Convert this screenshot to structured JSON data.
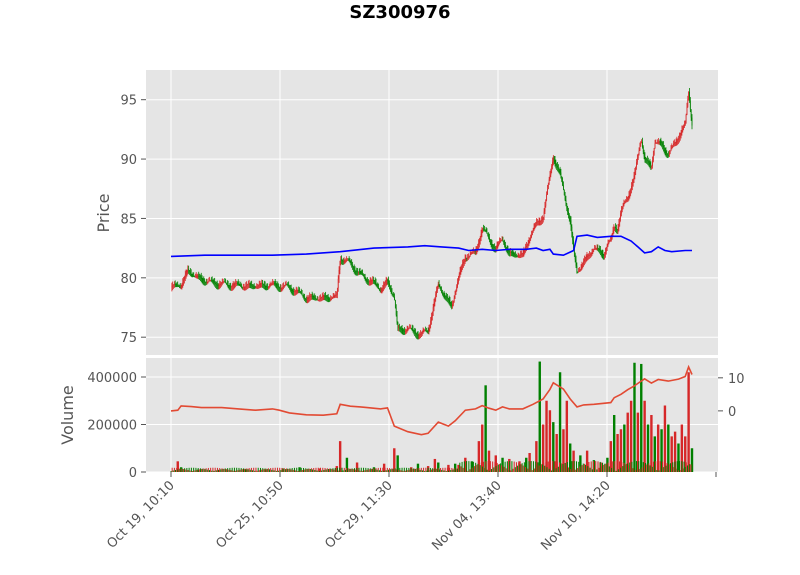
{
  "chart_data": {
    "type": "candlestick",
    "title": "SZ300976",
    "colors": {
      "panel_bg": "#e5e5e5",
      "grid": "#ffffff",
      "up": "#d62728",
      "down": "#008000",
      "ma_line": "#0000ff",
      "volume_overlay": "#e24a33"
    },
    "x_tick_labels": [
      "Oct 19, 10:10",
      "Oct 25, 10:50",
      "Oct 29, 11:30",
      "Nov 04, 13:40",
      "Nov 10, 14:20"
    ],
    "price_panel": {
      "ylabel": "Price",
      "ylim": [
        73.5,
        97.5
      ],
      "yticks": [
        75,
        80,
        85,
        90,
        95
      ],
      "close_path": [
        [
          0,
          79.2
        ],
        [
          3,
          79.4
        ],
        [
          5,
          80.6
        ],
        [
          8,
          80.0
        ],
        [
          12,
          79.6
        ],
        [
          18,
          79.4
        ],
        [
          24,
          79.3
        ],
        [
          30,
          79.4
        ],
        [
          35,
          79.2
        ],
        [
          38,
          78.7
        ],
        [
          40,
          78.3
        ],
        [
          45,
          78.3
        ],
        [
          49,
          78.4
        ],
        [
          50,
          81.7
        ],
        [
          53,
          81.2
        ],
        [
          57,
          80.0
        ],
        [
          60,
          79.6
        ],
        [
          62,
          79.0
        ],
        [
          64,
          79.7
        ],
        [
          66,
          78.4
        ],
        [
          67,
          75.6
        ],
        [
          70,
          75.7
        ],
        [
          74,
          75.2
        ],
        [
          76,
          75.6
        ],
        [
          79,
          79.4
        ],
        [
          82,
          78.0
        ],
        [
          83,
          77.6
        ],
        [
          85,
          80.0
        ],
        [
          87,
          81.8
        ],
        [
          90,
          82.1
        ],
        [
          92,
          84.2
        ],
        [
          94,
          83.3
        ],
        [
          96,
          82.4
        ],
        [
          98,
          83.3
        ],
        [
          100,
          82.0
        ],
        [
          104,
          81.9
        ],
        [
          106,
          83.4
        ],
        [
          108,
          84.5
        ],
        [
          110,
          85.2
        ],
        [
          112,
          88.5
        ],
        [
          113,
          90.3
        ],
        [
          115,
          88.7
        ],
        [
          117,
          86.0
        ],
        [
          118,
          84.8
        ],
        [
          119,
          82.3
        ],
        [
          120,
          80.5
        ],
        [
          122,
          81.3
        ],
        [
          125,
          82.5
        ],
        [
          128,
          82.0
        ],
        [
          129,
          82.8
        ],
        [
          130,
          83.0
        ],
        [
          131,
          84.4
        ],
        [
          132,
          84.2
        ],
        [
          133,
          85.5
        ],
        [
          135,
          86.8
        ],
        [
          137,
          88.6
        ],
        [
          138,
          90.2
        ],
        [
          139,
          91.8
        ],
        [
          140,
          90.0
        ],
        [
          142,
          89.3
        ],
        [
          143,
          91.5
        ],
        [
          145,
          91.2
        ],
        [
          147,
          90.4
        ],
        [
          149,
          91.3
        ],
        [
          151,
          92.5
        ],
        [
          152,
          92.8
        ],
        [
          153,
          95.7
        ],
        [
          154,
          93.0
        ]
      ],
      "ma_path": [
        [
          0,
          81.8
        ],
        [
          10,
          81.9
        ],
        [
          20,
          81.9
        ],
        [
          30,
          81.9
        ],
        [
          40,
          82.0
        ],
        [
          50,
          82.2
        ],
        [
          60,
          82.5
        ],
        [
          70,
          82.6
        ],
        [
          75,
          82.7
        ],
        [
          80,
          82.6
        ],
        [
          85,
          82.5
        ],
        [
          88,
          82.3
        ],
        [
          92,
          82.4
        ],
        [
          96,
          82.3
        ],
        [
          100,
          82.4
        ],
        [
          105,
          82.4
        ],
        [
          108,
          82.5
        ],
        [
          110,
          82.3
        ],
        [
          112,
          82.4
        ],
        [
          113,
          82.0
        ],
        [
          116,
          81.9
        ],
        [
          119,
          82.3
        ],
        [
          120,
          83.5
        ],
        [
          123,
          83.6
        ],
        [
          126,
          83.4
        ],
        [
          130,
          83.5
        ],
        [
          133,
          83.5
        ],
        [
          136,
          83.1
        ],
        [
          138,
          82.6
        ],
        [
          140,
          82.1
        ],
        [
          142,
          82.2
        ],
        [
          144,
          82.6
        ],
        [
          146,
          82.3
        ],
        [
          148,
          82.2
        ],
        [
          152,
          82.3
        ],
        [
          154,
          82.3
        ]
      ]
    },
    "volume_panel": {
      "ylabel": "Volume",
      "ylim": [
        0,
        480000
      ],
      "yticks": [
        0,
        200000,
        400000
      ],
      "ytick_labels": [
        "0",
        "200000",
        "400000"
      ],
      "right_ylim": [
        -18.5,
        16
      ],
      "right_yticks": [
        0,
        10
      ],
      "right_ytick_labels": [
        "0",
        "10"
      ],
      "overlay_path": [
        [
          0,
          0
        ],
        [
          2,
          0.2
        ],
        [
          3,
          1.5
        ],
        [
          6,
          1.3
        ],
        [
          9,
          1.0
        ],
        [
          15,
          1.0
        ],
        [
          20,
          0.6
        ],
        [
          25,
          0.2
        ],
        [
          30,
          0.6
        ],
        [
          32,
          0.2
        ],
        [
          35,
          -0.6
        ],
        [
          40,
          -1.2
        ],
        [
          45,
          -1.3
        ],
        [
          49,
          -0.9
        ],
        [
          50,
          2.0
        ],
        [
          53,
          1.4
        ],
        [
          56,
          1.2
        ],
        [
          58,
          1.0
        ],
        [
          62,
          0.6
        ],
        [
          64,
          0.9
        ],
        [
          66,
          -4.6
        ],
        [
          70,
          -6.3
        ],
        [
          74,
          -7.2
        ],
        [
          76,
          -6.8
        ],
        [
          79,
          -3.4
        ],
        [
          82,
          -4.6
        ],
        [
          84,
          -3.0
        ],
        [
          87,
          0.2
        ],
        [
          90,
          0.6
        ],
        [
          92,
          1.6
        ],
        [
          94,
          0.8
        ],
        [
          96,
          0.2
        ],
        [
          98,
          1.2
        ],
        [
          100,
          0.6
        ],
        [
          104,
          0.6
        ],
        [
          107,
          2.0
        ],
        [
          110,
          3.6
        ],
        [
          112,
          6.5
        ],
        [
          113,
          8.5
        ],
        [
          116,
          6.6
        ],
        [
          118,
          3.6
        ],
        [
          120,
          1.2
        ],
        [
          122,
          1.8
        ],
        [
          125,
          2.0
        ],
        [
          130,
          2.5
        ],
        [
          131,
          4.0
        ],
        [
          133,
          5.0
        ],
        [
          135,
          6.4
        ],
        [
          137,
          7.6
        ],
        [
          138,
          8.3
        ],
        [
          140,
          9.7
        ],
        [
          142,
          8.4
        ],
        [
          144,
          9.5
        ],
        [
          147,
          9.0
        ],
        [
          150,
          9.6
        ],
        [
          152,
          10.4
        ],
        [
          153,
          13.3
        ],
        [
          154,
          11.0
        ]
      ],
      "volume_bars": [
        [
          2,
          45000,
          "up"
        ],
        [
          3,
          20000,
          "down"
        ],
        [
          8,
          10000,
          "down"
        ],
        [
          14,
          8000,
          "up"
        ],
        [
          22,
          10000,
          "down"
        ],
        [
          28,
          9000,
          "up"
        ],
        [
          33,
          15000,
          "down"
        ],
        [
          38,
          20000,
          "down"
        ],
        [
          44,
          15000,
          "up"
        ],
        [
          49,
          25000,
          "up"
        ],
        [
          50,
          130000,
          "up"
        ],
        [
          52,
          60000,
          "down"
        ],
        [
          55,
          40000,
          "up"
        ],
        [
          60,
          20000,
          "down"
        ],
        [
          63,
          35000,
          "up"
        ],
        [
          66,
          100000,
          "up"
        ],
        [
          67,
          70000,
          "down"
        ],
        [
          71,
          20000,
          "up"
        ],
        [
          73,
          35000,
          "down"
        ],
        [
          76,
          25000,
          "up"
        ],
        [
          78,
          55000,
          "up"
        ],
        [
          79,
          40000,
          "down"
        ],
        [
          82,
          30000,
          "up"
        ],
        [
          84,
          35000,
          "down"
        ],
        [
          85,
          30000,
          "up"
        ],
        [
          87,
          60000,
          "up"
        ],
        [
          89,
          45000,
          "down"
        ],
        [
          91,
          130000,
          "up"
        ],
        [
          92,
          200000,
          "up"
        ],
        [
          93,
          365000,
          "down"
        ],
        [
          94,
          90000,
          "up"
        ],
        [
          96,
          70000,
          "up"
        ],
        [
          98,
          60000,
          "down"
        ],
        [
          100,
          55000,
          "up"
        ],
        [
          103,
          45000,
          "up"
        ],
        [
          105,
          60000,
          "down"
        ],
        [
          106,
          80000,
          "up"
        ],
        [
          108,
          130000,
          "up"
        ],
        [
          109,
          465000,
          "down"
        ],
        [
          110,
          200000,
          "up"
        ],
        [
          111,
          300000,
          "up"
        ],
        [
          112,
          260000,
          "up"
        ],
        [
          113,
          210000,
          "down"
        ],
        [
          114,
          160000,
          "up"
        ],
        [
          115,
          420000,
          "down"
        ],
        [
          116,
          180000,
          "up"
        ],
        [
          117,
          300000,
          "up"
        ],
        [
          118,
          120000,
          "down"
        ],
        [
          119,
          90000,
          "up"
        ],
        [
          121,
          70000,
          "down"
        ],
        [
          123,
          90000,
          "up"
        ],
        [
          125,
          50000,
          "down"
        ],
        [
          127,
          40000,
          "up"
        ],
        [
          129,
          60000,
          "down"
        ],
        [
          130,
          130000,
          "up"
        ],
        [
          131,
          240000,
          "down"
        ],
        [
          132,
          160000,
          "up"
        ],
        [
          133,
          180000,
          "up"
        ],
        [
          134,
          200000,
          "down"
        ],
        [
          135,
          250000,
          "up"
        ],
        [
          136,
          300000,
          "up"
        ],
        [
          137,
          460000,
          "down"
        ],
        [
          138,
          250000,
          "up"
        ],
        [
          139,
          455000,
          "down"
        ],
        [
          140,
          300000,
          "up"
        ],
        [
          141,
          200000,
          "down"
        ],
        [
          142,
          240000,
          "up"
        ],
        [
          143,
          150000,
          "down"
        ],
        [
          144,
          200000,
          "up"
        ],
        [
          145,
          180000,
          "down"
        ],
        [
          146,
          280000,
          "up"
        ],
        [
          147,
          200000,
          "down"
        ],
        [
          148,
          150000,
          "up"
        ],
        [
          149,
          170000,
          "up"
        ],
        [
          150,
          120000,
          "down"
        ],
        [
          151,
          200000,
          "up"
        ],
        [
          152,
          150000,
          "up"
        ],
        [
          153,
          420000,
          "up"
        ],
        [
          154,
          100000,
          "down"
        ]
      ]
    }
  }
}
